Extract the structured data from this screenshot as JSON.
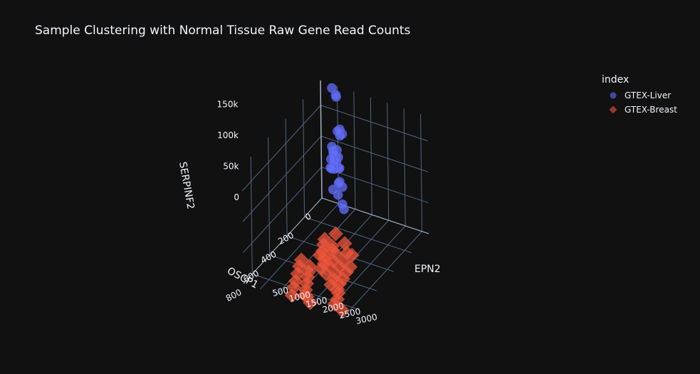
{
  "chart_data": {
    "type": "scatter3d",
    "title": "Sample Clustering with Normal Tissue Raw Gene Read Counts",
    "xlabel": "OSCP1",
    "ylabel": "EPN2",
    "zlabel": "SERPINF2",
    "x_ticks": [
      "0",
      "200",
      "400",
      "600",
      "800"
    ],
    "x_tick_values": [
      0,
      200,
      400,
      600,
      800
    ],
    "y_ticks": [
      "500",
      "1000",
      "1500",
      "2000",
      "2500",
      "3000"
    ],
    "y_tick_values": [
      500,
      1000,
      1500,
      2000,
      2500,
      3000
    ],
    "z_ticks": [
      "0",
      "50k",
      "100k",
      "150k"
    ],
    "z_tick_values": [
      0,
      50000,
      100000,
      150000
    ],
    "xlim": [
      0,
      900
    ],
    "ylim": [
      0,
      3200
    ],
    "zlim": [
      0,
      190000
    ],
    "legend": {
      "title": "index",
      "placement": "top-right"
    },
    "series": [
      {
        "name": "GTEX-Liver",
        "marker": "circle",
        "color": "#636efa",
        "points": [
          [
            30,
            420,
            190000
          ],
          [
            25,
            520,
            180000
          ],
          [
            35,
            560,
            179000
          ],
          [
            40,
            600,
            125000
          ],
          [
            25,
            700,
            120000
          ],
          [
            45,
            680,
            130000
          ],
          [
            20,
            620,
            115000
          ],
          [
            30,
            400,
            95000
          ],
          [
            35,
            450,
            90000
          ],
          [
            40,
            500,
            85000
          ],
          [
            30,
            550,
            92000
          ],
          [
            45,
            480,
            88000
          ],
          [
            25,
            520,
            80000
          ],
          [
            35,
            600,
            82000
          ],
          [
            50,
            420,
            78000
          ],
          [
            30,
            480,
            75000
          ],
          [
            40,
            560,
            76000
          ],
          [
            45,
            500,
            70000
          ],
          [
            20,
            450,
            72000
          ],
          [
            35,
            530,
            68000
          ],
          [
            30,
            470,
            65000
          ],
          [
            40,
            610,
            66000
          ],
          [
            50,
            520,
            64000
          ],
          [
            25,
            580,
            62000
          ],
          [
            35,
            400,
            60000
          ],
          [
            60,
            700,
            70000
          ],
          [
            30,
            350,
            60000
          ],
          [
            45,
            660,
            45000
          ],
          [
            35,
            600,
            40000
          ],
          [
            30,
            700,
            35000
          ],
          [
            60,
            500,
            32000
          ],
          [
            80,
            700,
            30000
          ],
          [
            70,
            800,
            15000
          ],
          [
            90,
            900,
            12000
          ]
        ]
      },
      {
        "name": "GTEX-Breast",
        "marker": "diamond",
        "color": "#ef553b",
        "points": [
          [
            350,
            1000,
            5000
          ],
          [
            400,
            1100,
            6000
          ],
          [
            450,
            1200,
            5000
          ],
          [
            500,
            1250,
            7000
          ],
          [
            380,
            1300,
            4000
          ],
          [
            420,
            1400,
            6000
          ],
          [
            480,
            1350,
            5000
          ],
          [
            520,
            1450,
            8000
          ],
          [
            550,
            1500,
            5000
          ],
          [
            600,
            1550,
            6000
          ],
          [
            450,
            1600,
            7000
          ],
          [
            500,
            1650,
            5000
          ],
          [
            560,
            1700,
            6000
          ],
          [
            620,
            1750,
            4000
          ],
          [
            400,
            1800,
            5000
          ],
          [
            480,
            1900,
            6000
          ],
          [
            540,
            1950,
            7000
          ],
          [
            600,
            2000,
            5000
          ],
          [
            650,
            2050,
            6000
          ],
          [
            700,
            2100,
            5000
          ],
          [
            500,
            2150,
            4000
          ],
          [
            560,
            2200,
            6000
          ],
          [
            620,
            2250,
            5000
          ],
          [
            680,
            2300,
            7000
          ],
          [
            720,
            2350,
            5000
          ],
          [
            750,
            2450,
            6000
          ],
          [
            800,
            2550,
            5000
          ],
          [
            850,
            2600,
            6000
          ],
          [
            600,
            1200,
            3000
          ],
          [
            650,
            1300,
            4000
          ],
          [
            700,
            1400,
            5000
          ],
          [
            750,
            1500,
            4000
          ],
          [
            800,
            1600,
            3000
          ],
          [
            580,
            900,
            5000
          ],
          [
            640,
            1000,
            6000
          ],
          [
            700,
            1100,
            5000
          ],
          [
            760,
            1200,
            4000
          ],
          [
            820,
            1300,
            5000
          ],
          [
            880,
            1400,
            3000
          ],
          [
            860,
            1800,
            5000
          ],
          [
            300,
            1200,
            10000
          ],
          [
            350,
            1600,
            9000
          ],
          [
            420,
            2000,
            8000
          ],
          [
            880,
            2900,
            6000
          ],
          [
            850,
            1700,
            4000
          ],
          [
            900,
            2000,
            5000
          ]
        ]
      }
    ]
  }
}
